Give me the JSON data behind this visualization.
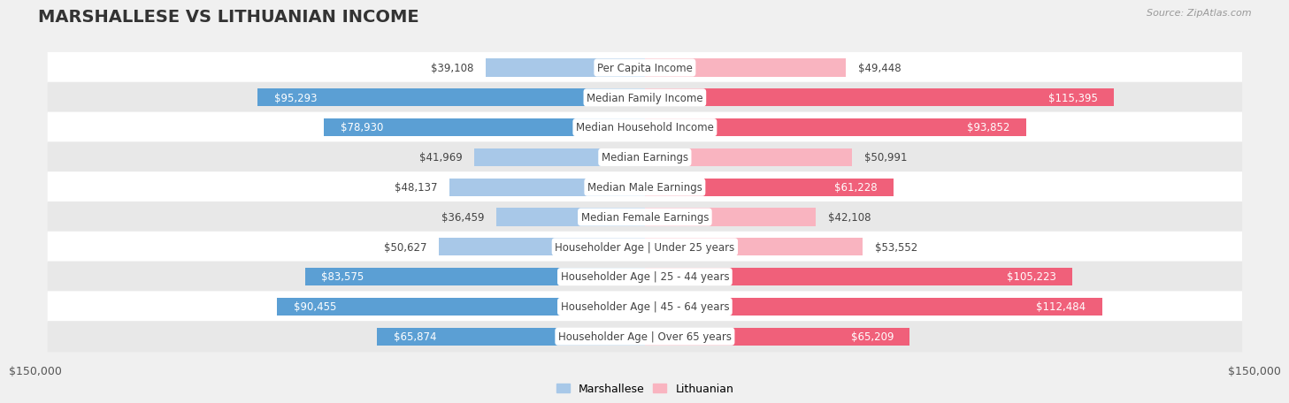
{
  "title": "MARSHALLESE VS LITHUANIAN INCOME",
  "source": "Source: ZipAtlas.com",
  "categories": [
    "Per Capita Income",
    "Median Family Income",
    "Median Household Income",
    "Median Earnings",
    "Median Male Earnings",
    "Median Female Earnings",
    "Householder Age | Under 25 years",
    "Householder Age | 25 - 44 years",
    "Householder Age | 45 - 64 years",
    "Householder Age | Over 65 years"
  ],
  "marshallese": [
    39108,
    95293,
    78930,
    41969,
    48137,
    36459,
    50627,
    83575,
    90455,
    65874
  ],
  "lithuanian": [
    49448,
    115395,
    93852,
    50991,
    61228,
    42108,
    53552,
    105223,
    112484,
    65209
  ],
  "marshallese_labels": [
    "$39,108",
    "$95,293",
    "$78,930",
    "$41,969",
    "$48,137",
    "$36,459",
    "$50,627",
    "$83,575",
    "$90,455",
    "$65,874"
  ],
  "lithuanian_labels": [
    "$49,448",
    "$115,395",
    "$93,852",
    "$50,991",
    "$61,228",
    "$42,108",
    "$53,552",
    "$105,223",
    "$112,484",
    "$65,209"
  ],
  "max_value": 150000,
  "bar_color_marshallese_light": "#a8c8e8",
  "bar_color_marshallese_dark": "#5b9fd4",
  "bar_color_lithuanian_light": "#f9b4c0",
  "bar_color_lithuanian_dark": "#f0607a",
  "bg_color": "#f0f0f0",
  "row_bg_even": "#ffffff",
  "row_bg_odd": "#e8e8e8",
  "center_label_bg": "#ffffff",
  "center_label_color": "#444444",
  "axis_label": "$150,000",
  "title_fontsize": 14,
  "bar_label_fontsize": 8.5,
  "category_fontsize": 8.5,
  "legend_fontsize": 9,
  "inside_threshold": 60000
}
